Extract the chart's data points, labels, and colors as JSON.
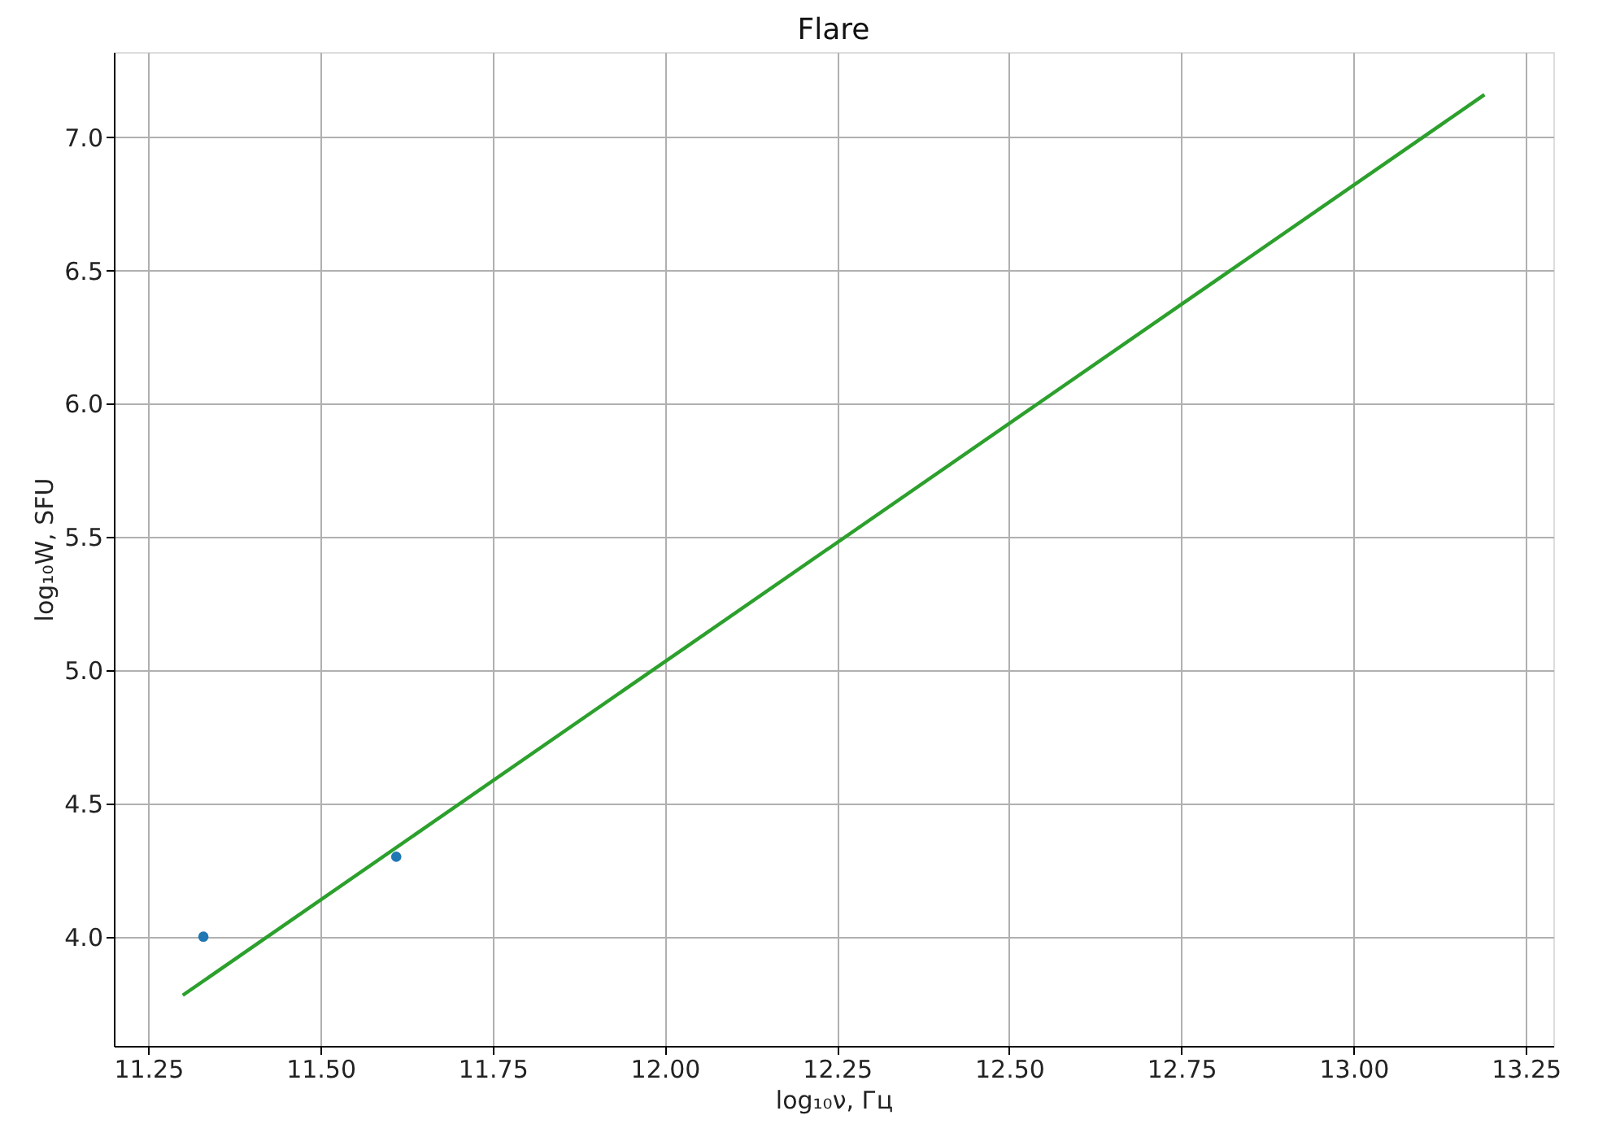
{
  "chart_data": {
    "type": "scatter",
    "title": "Flare",
    "xlabel": "log₁₀ν, Гц",
    "ylabel": "log₁₀W, SFU",
    "x": [
      11.33,
      11.61
    ],
    "series": [
      {
        "color": "#1f77b4",
        "values": [
          4.0,
          4.3
        ],
        "marker": "circle"
      },
      {
        "type": "line",
        "color": "#2ca02c",
        "x": [
          11.3,
          13.19
        ],
        "values": [
          3.78,
          7.16
        ],
        "line_style": "solid"
      }
    ],
    "xlim": [
      11.2,
      13.29
    ],
    "ylim": [
      3.59,
      7.32
    ],
    "xticks": [
      {
        "value": 11.25,
        "label": "11.25"
      },
      {
        "value": 11.5,
        "label": "11.50"
      },
      {
        "value": 11.75,
        "label": "11.75"
      },
      {
        "value": 12.0,
        "label": "12.00"
      },
      {
        "value": 12.25,
        "label": "12.25"
      },
      {
        "value": 12.5,
        "label": "12.50"
      },
      {
        "value": 12.75,
        "label": "12.75"
      },
      {
        "value": 13.0,
        "label": "13.00"
      },
      {
        "value": 13.25,
        "label": "13.25"
      }
    ],
    "yticks": [
      {
        "value": 4.0,
        "label": "4.0"
      },
      {
        "value": 4.5,
        "label": "4.5"
      },
      {
        "value": 5.0,
        "label": "5.0"
      },
      {
        "value": 5.5,
        "label": "5.5"
      },
      {
        "value": 6.0,
        "label": "6.0"
      },
      {
        "value": 6.5,
        "label": "6.5"
      },
      {
        "value": 7.0,
        "label": "7.0"
      }
    ],
    "grid": true
  }
}
